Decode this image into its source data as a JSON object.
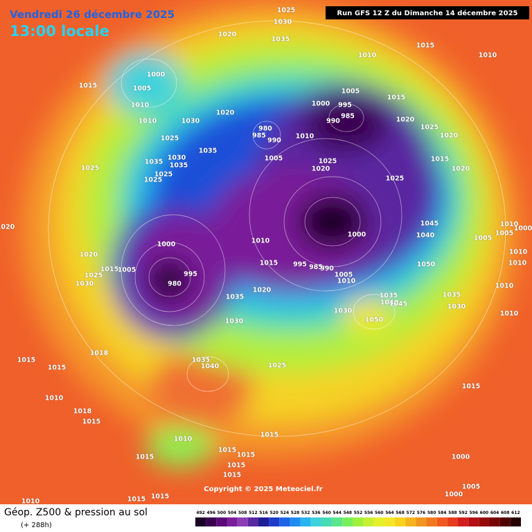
{
  "header": {
    "date": "Vendredi 26 décembre 2025",
    "time": "13:00 locale",
    "run": "Run GFS 12 Z du Dimanche 14 décembre 2025"
  },
  "copyright": "Copyright © 2025 Meteociel.fr",
  "footer": {
    "title": "Géop. Z500 & pression au sol",
    "lead": "(+ 288h)"
  },
  "scale": {
    "values": [
      492,
      496,
      500,
      504,
      508,
      512,
      516,
      520,
      524,
      528,
      532,
      536,
      540,
      544,
      548,
      552,
      556,
      560,
      564,
      568,
      572,
      576,
      580,
      584,
      588,
      592,
      596,
      600,
      604,
      608,
      612
    ],
    "colors": [
      "#1a0026",
      "#3a0050",
      "#5a0a78",
      "#7a1e9a",
      "#8c3cb4",
      "#5a28a0",
      "#1e1e96",
      "#1e3cc8",
      "#1e64e6",
      "#1e8cf0",
      "#28b4f0",
      "#3cd2dc",
      "#46dcb4",
      "#5ae68c",
      "#78f05a",
      "#a0f03c",
      "#c8f032",
      "#e6f028",
      "#f5e628",
      "#fad21e",
      "#f5b41e",
      "#f0961e",
      "#f0781e",
      "#f05a1e",
      "#e63c1e",
      "#d21e1e",
      "#b40f14",
      "#960a0a",
      "#780505",
      "#500000",
      "#280000"
    ]
  },
  "isobar_labels": [
    1025,
    1030,
    1020,
    1035,
    1010,
    1015,
    1010,
    1000,
    1005,
    1015,
    1010,
    1010,
    1030,
    1025,
    1005,
    1000,
    995,
    985,
    990,
    1015,
    1020,
    1025,
    1020,
    1010,
    1020,
    1035,
    1030,
    1035,
    1035,
    1025,
    1025,
    1025,
    1015,
    1020,
    1025,
    1025,
    1020,
    980,
    985,
    990,
    1005,
    1000,
    1005,
    1015,
    1020,
    1025,
    1030,
    980,
    995,
    1010,
    1015,
    1000,
    995,
    990,
    985,
    1005,
    1010,
    1040,
    1045,
    1050,
    1035,
    1040,
    1045,
    1035,
    1030,
    1050,
    1030,
    1020,
    1035,
    1030,
    1018,
    1015,
    1015,
    1035,
    1040,
    1025,
    1010,
    1018,
    1015,
    1010,
    1015,
    1015,
    1015,
    1015,
    1015,
    1015,
    1015,
    1000,
    1005,
    1000,
    1010,
    1015,
    1015,
    1010,
    1010,
    1010,
    1010,
    1010,
    1005,
    1005,
    1000,
    1020
  ]
}
